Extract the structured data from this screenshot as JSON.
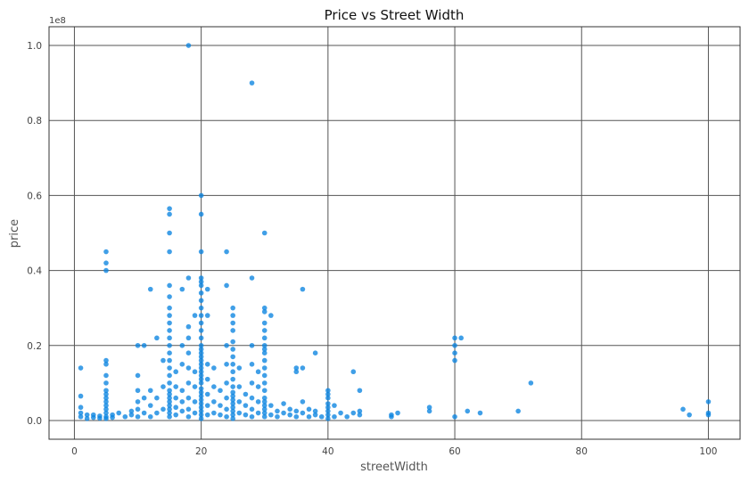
{
  "chart_data": {
    "type": "scatter",
    "title": "Price vs Street Width",
    "xlabel": "streetWidth",
    "ylabel": "price",
    "y_offset_label": "1e8",
    "xlim": [
      -4,
      105
    ],
    "ylim": [
      -5000000,
      105000000
    ],
    "x_ticks": [
      0,
      20,
      40,
      60,
      80,
      100
    ],
    "y_ticks": [
      0,
      20000000,
      40000000,
      60000000,
      80000000,
      100000000
    ],
    "y_tick_labels": [
      "0.0",
      "0.2",
      "0.4",
      "0.6",
      "0.8",
      "1.0"
    ],
    "grid": true,
    "color": "#0a84e0",
    "series": [
      {
        "points": [
          [
            18,
            100000000
          ],
          [
            28,
            90000000
          ],
          [
            20,
            60000000
          ],
          [
            20,
            55000000
          ],
          [
            15,
            56500000
          ],
          [
            15,
            55000000
          ],
          [
            15,
            50000000
          ],
          [
            30,
            50000000
          ],
          [
            5,
            45000000
          ],
          [
            5,
            42000000
          ],
          [
            5,
            40000000
          ],
          [
            15,
            45000000
          ],
          [
            20,
            45000000
          ],
          [
            24,
            45000000
          ],
          [
            12,
            35000000
          ],
          [
            15,
            36000000
          ],
          [
            17,
            35000000
          ],
          [
            18,
            38000000
          ],
          [
            20,
            38000000
          ],
          [
            20,
            37000000
          ],
          [
            20,
            36000000
          ],
          [
            21,
            35000000
          ],
          [
            24,
            36000000
          ],
          [
            28,
            38000000
          ],
          [
            25,
            30000000
          ],
          [
            30,
            30000000
          ],
          [
            30,
            29000000
          ],
          [
            31,
            28000000
          ],
          [
            36,
            35000000
          ],
          [
            20,
            34000000
          ],
          [
            20,
            32000000
          ],
          [
            20,
            30000000
          ],
          [
            20,
            28000000
          ],
          [
            20,
            26000000
          ],
          [
            20,
            24000000
          ],
          [
            21,
            28000000
          ],
          [
            15,
            33000000
          ],
          [
            15,
            30000000
          ],
          [
            15,
            28000000
          ],
          [
            15,
            26000000
          ],
          [
            15,
            24000000
          ],
          [
            15,
            22000000
          ],
          [
            25,
            28000000
          ],
          [
            25,
            26000000
          ],
          [
            25,
            24000000
          ],
          [
            30,
            26000000
          ],
          [
            30,
            24000000
          ],
          [
            30,
            22000000
          ],
          [
            13,
            22000000
          ],
          [
            18,
            25000000
          ],
          [
            18,
            22000000
          ],
          [
            19,
            28000000
          ],
          [
            10,
            20000000
          ],
          [
            11,
            20000000
          ],
          [
            17,
            20000000
          ],
          [
            20,
            22000000
          ],
          [
            24,
            20000000
          ],
          [
            28,
            20000000
          ],
          [
            30,
            20000000
          ],
          [
            30,
            19000000
          ],
          [
            38,
            18000000
          ],
          [
            60,
            22000000
          ],
          [
            61,
            22000000
          ],
          [
            60,
            20000000
          ],
          [
            60,
            18000000
          ],
          [
            60,
            16000000
          ],
          [
            72,
            10000000
          ],
          [
            44,
            13000000
          ],
          [
            45,
            8000000
          ],
          [
            5,
            16000000
          ],
          [
            5,
            15000000
          ],
          [
            5,
            12000000
          ],
          [
            5,
            10000000
          ],
          [
            5,
            8000000
          ],
          [
            5,
            7000000
          ],
          [
            5,
            6000000
          ],
          [
            5,
            5000000
          ],
          [
            5,
            4000000
          ],
          [
            5,
            3000000
          ],
          [
            5,
            2000000
          ],
          [
            5,
            1000000
          ],
          [
            5,
            500000
          ],
          [
            1,
            14000000
          ],
          [
            1,
            6500000
          ],
          [
            1,
            3500000
          ],
          [
            1,
            2000000
          ],
          [
            1,
            1000000
          ],
          [
            2,
            1500000
          ],
          [
            2,
            500000
          ],
          [
            3,
            1500000
          ],
          [
            3,
            800000
          ],
          [
            4,
            1200000
          ],
          [
            4,
            600000
          ],
          [
            6,
            1500000
          ],
          [
            6,
            800000
          ],
          [
            7,
            2000000
          ],
          [
            8,
            1000000
          ],
          [
            9,
            1500000
          ],
          [
            9,
            2500000
          ],
          [
            10,
            1000000
          ],
          [
            10,
            3000000
          ],
          [
            10,
            5000000
          ],
          [
            10,
            8000000
          ],
          [
            10,
            12000000
          ],
          [
            11,
            2000000
          ],
          [
            11,
            6000000
          ],
          [
            12,
            1000000
          ],
          [
            12,
            4000000
          ],
          [
            12,
            8000000
          ],
          [
            13,
            2000000
          ],
          [
            13,
            6000000
          ],
          [
            14,
            3000000
          ],
          [
            14,
            9000000
          ],
          [
            14,
            16000000
          ],
          [
            15,
            1000000
          ],
          [
            15,
            2000000
          ],
          [
            15,
            3000000
          ],
          [
            15,
            4000000
          ],
          [
            15,
            5000000
          ],
          [
            15,
            6000000
          ],
          [
            15,
            7000000
          ],
          [
            15,
            8000000
          ],
          [
            15,
            10000000
          ],
          [
            15,
            12000000
          ],
          [
            15,
            14000000
          ],
          [
            15,
            16000000
          ],
          [
            15,
            18000000
          ],
          [
            15,
            20000000
          ],
          [
            16,
            1500000
          ],
          [
            16,
            3500000
          ],
          [
            16,
            6000000
          ],
          [
            16,
            9000000
          ],
          [
            16,
            13000000
          ],
          [
            17,
            2500000
          ],
          [
            17,
            5000000
          ],
          [
            17,
            8000000
          ],
          [
            17,
            15000000
          ],
          [
            18,
            1000000
          ],
          [
            18,
            3000000
          ],
          [
            18,
            6000000
          ],
          [
            18,
            10000000
          ],
          [
            18,
            14000000
          ],
          [
            18,
            18000000
          ],
          [
            19,
            2000000
          ],
          [
            19,
            5000000
          ],
          [
            19,
            9000000
          ],
          [
            19,
            13000000
          ],
          [
            20,
            500000
          ],
          [
            20,
            1500000
          ],
          [
            20,
            2500000
          ],
          [
            20,
            3500000
          ],
          [
            20,
            4500000
          ],
          [
            20,
            5500000
          ],
          [
            20,
            6500000
          ],
          [
            20,
            7500000
          ],
          [
            20,
            8500000
          ],
          [
            20,
            10000000
          ],
          [
            20,
            11000000
          ],
          [
            20,
            12000000
          ],
          [
            20,
            13000000
          ],
          [
            20,
            14000000
          ],
          [
            20,
            15000000
          ],
          [
            20,
            16000000
          ],
          [
            20,
            17000000
          ],
          [
            20,
            18000000
          ],
          [
            20,
            19000000
          ],
          [
            20,
            20000000
          ],
          [
            21,
            1500000
          ],
          [
            21,
            4000000
          ],
          [
            21,
            7000000
          ],
          [
            21,
            11000000
          ],
          [
            21,
            15000000
          ],
          [
            22,
            2000000
          ],
          [
            22,
            5000000
          ],
          [
            22,
            9000000
          ],
          [
            22,
            14000000
          ],
          [
            23,
            1500000
          ],
          [
            23,
            4000000
          ],
          [
            23,
            8000000
          ],
          [
            24,
            1000000
          ],
          [
            24,
            3000000
          ],
          [
            24,
            6000000
          ],
          [
            24,
            10000000
          ],
          [
            24,
            15000000
          ],
          [
            25,
            500000
          ],
          [
            25,
            1500000
          ],
          [
            25,
            2500000
          ],
          [
            25,
            3500000
          ],
          [
            25,
            4500000
          ],
          [
            25,
            5500000
          ],
          [
            25,
            6500000
          ],
          [
            25,
            7500000
          ],
          [
            25,
            9000000
          ],
          [
            25,
            11000000
          ],
          [
            25,
            13000000
          ],
          [
            25,
            15000000
          ],
          [
            25,
            17000000
          ],
          [
            25,
            19000000
          ],
          [
            25,
            21000000
          ],
          [
            26,
            2000000
          ],
          [
            26,
            5000000
          ],
          [
            26,
            9000000
          ],
          [
            26,
            14000000
          ],
          [
            27,
            1500000
          ],
          [
            27,
            4000000
          ],
          [
            27,
            7000000
          ],
          [
            28,
            1000000
          ],
          [
            28,
            3000000
          ],
          [
            28,
            6000000
          ],
          [
            28,
            10000000
          ],
          [
            28,
            15000000
          ],
          [
            29,
            2000000
          ],
          [
            29,
            5000000
          ],
          [
            29,
            9000000
          ],
          [
            29,
            13000000
          ],
          [
            30,
            1000000
          ],
          [
            30,
            2000000
          ],
          [
            30,
            3000000
          ],
          [
            30,
            4000000
          ],
          [
            30,
            5000000
          ],
          [
            30,
            6000000
          ],
          [
            30,
            8000000
          ],
          [
            30,
            10000000
          ],
          [
            30,
            12000000
          ],
          [
            30,
            14000000
          ],
          [
            30,
            16000000
          ],
          [
            30,
            18000000
          ],
          [
            31,
            1500000
          ],
          [
            31,
            4000000
          ],
          [
            32,
            2500000
          ],
          [
            32,
            1000000
          ],
          [
            33,
            2000000
          ],
          [
            33,
            4500000
          ],
          [
            34,
            1500000
          ],
          [
            34,
            3000000
          ],
          [
            35,
            1000000
          ],
          [
            35,
            2500000
          ],
          [
            35,
            14000000
          ],
          [
            35,
            13000000
          ],
          [
            36,
            2000000
          ],
          [
            36,
            5000000
          ],
          [
            36,
            14000000
          ],
          [
            37,
            1000000
          ],
          [
            37,
            3000000
          ],
          [
            38,
            1500000
          ],
          [
            38,
            2500000
          ],
          [
            39,
            1000000
          ],
          [
            40,
            500000
          ],
          [
            40,
            1500000
          ],
          [
            40,
            2500000
          ],
          [
            40,
            3500000
          ],
          [
            40,
            4500000
          ],
          [
            40,
            6000000
          ],
          [
            40,
            7000000
          ],
          [
            40,
            8000000
          ],
          [
            41,
            1000000
          ],
          [
            41,
            4000000
          ],
          [
            42,
            2000000
          ],
          [
            43,
            1000000
          ],
          [
            44,
            2000000
          ],
          [
            45,
            2500000
          ],
          [
            45,
            1500000
          ],
          [
            50,
            1500000
          ],
          [
            50,
            1000000
          ],
          [
            51,
            2000000
          ],
          [
            56,
            2500000
          ],
          [
            56,
            3500000
          ],
          [
            60,
            1000000
          ],
          [
            62,
            2500000
          ],
          [
            64,
            2000000
          ],
          [
            70,
            2500000
          ],
          [
            96,
            3000000
          ],
          [
            97,
            1500000
          ],
          [
            100,
            5000000
          ],
          [
            100,
            2000000
          ],
          [
            100,
            1500000
          ]
        ]
      }
    ]
  }
}
